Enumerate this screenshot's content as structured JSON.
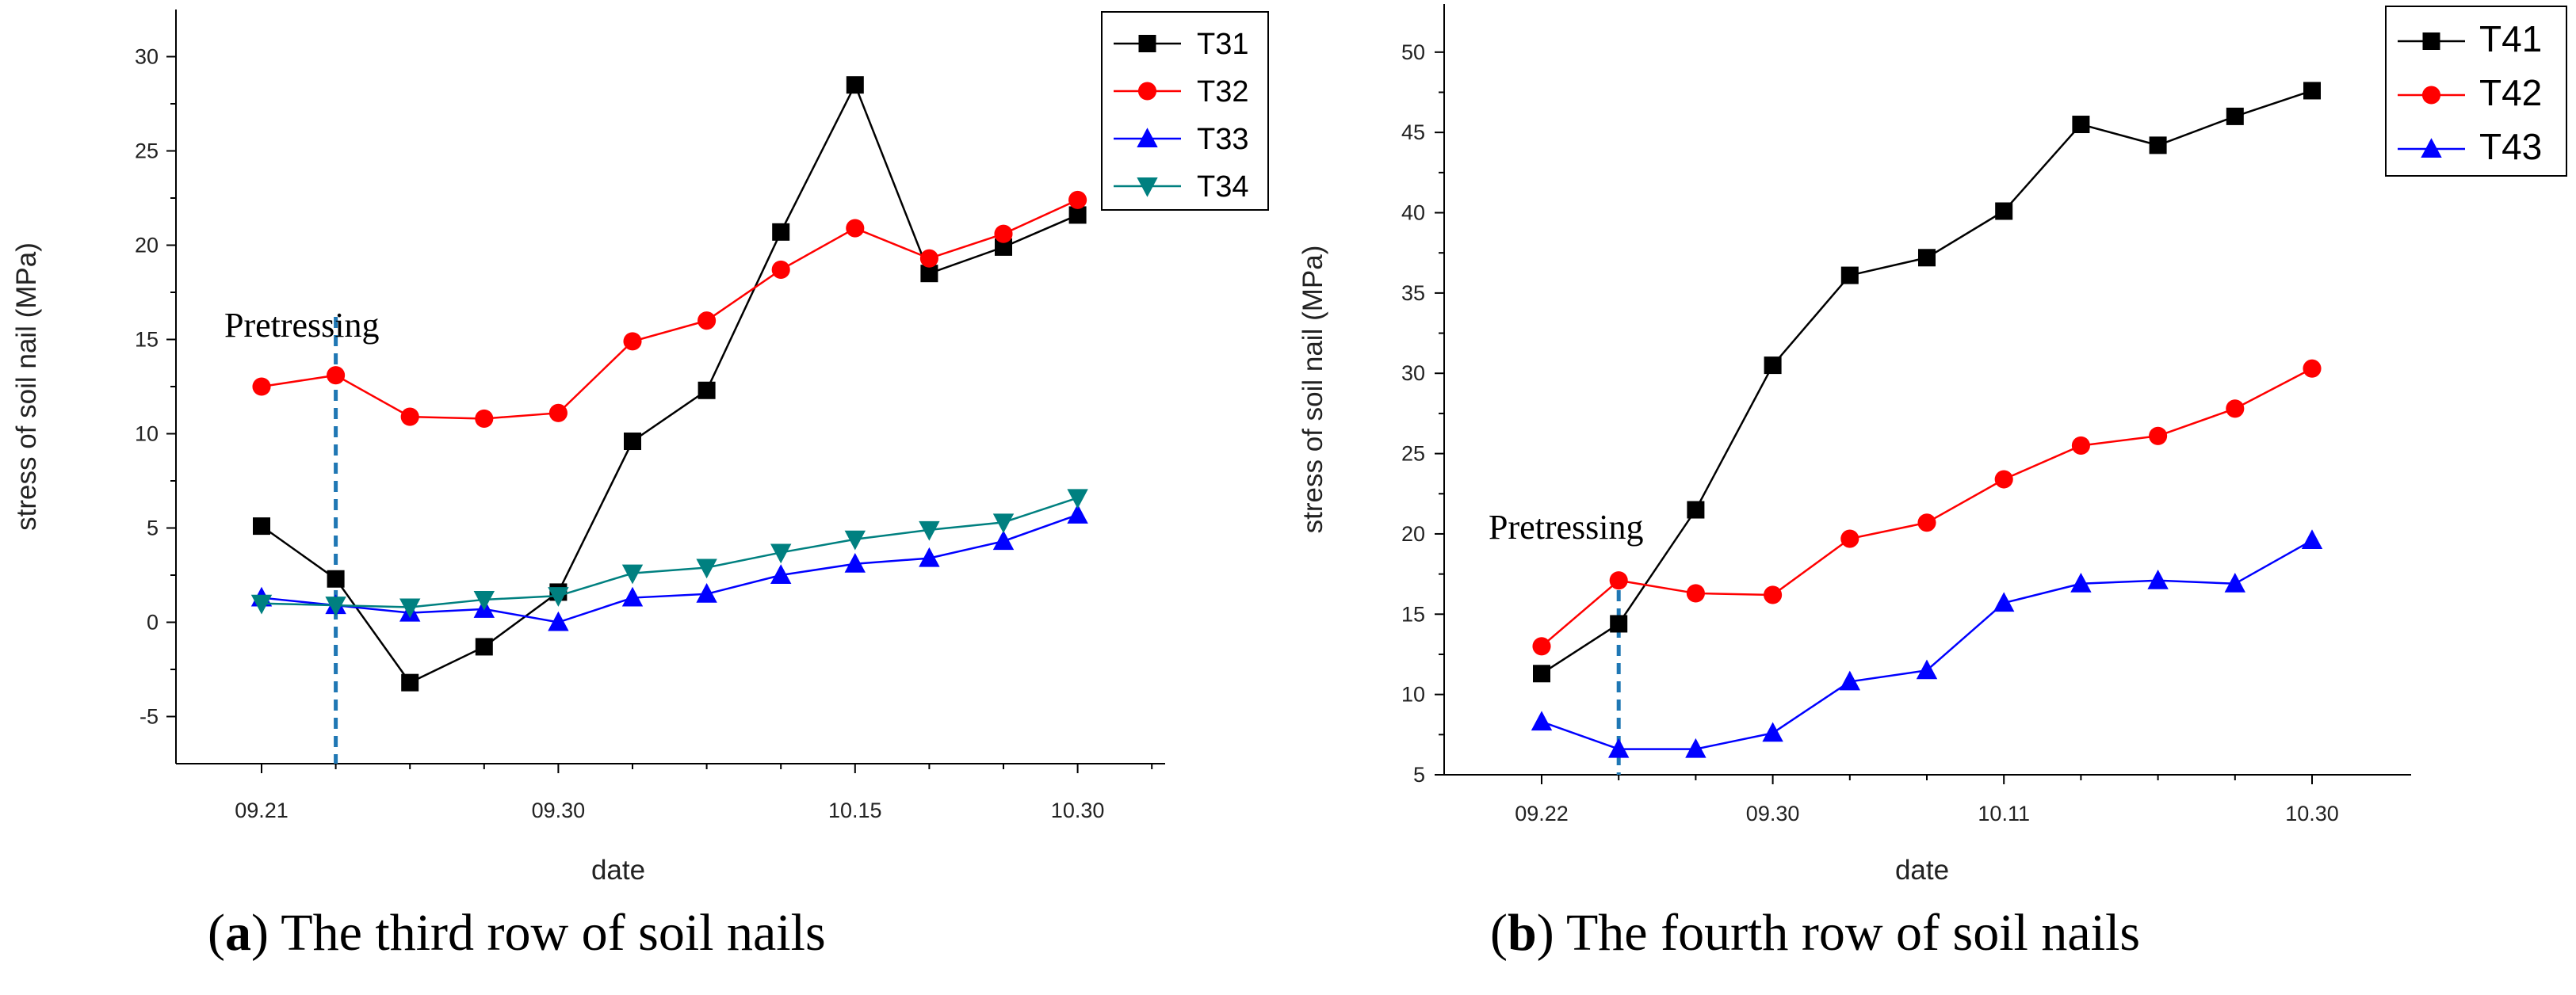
{
  "chart_data": [
    {
      "type": "line",
      "panel": "a",
      "title": "",
      "xlabel": "date",
      "ylabel": "stress of soil nail (MPa)",
      "xlim": [
        0,
        12
      ],
      "ylim": [
        -7.5,
        32.5
      ],
      "yticks": [
        -5,
        0,
        5,
        10,
        15,
        20,
        25,
        30
      ],
      "xticks": [
        {
          "x": 0,
          "label": "09.21"
        },
        {
          "x": 4,
          "label": "09.30"
        },
        {
          "x": 8,
          "label": "10.15"
        },
        {
          "x": 11,
          "label": "10.30"
        }
      ],
      "x": [
        0,
        1,
        2,
        3,
        4,
        5,
        6,
        7,
        8,
        9,
        10,
        11
      ],
      "series": [
        {
          "name": "T31",
          "color": "#000000",
          "marker": "square",
          "values": [
            5.1,
            2.3,
            -3.2,
            -1.3,
            1.6,
            9.6,
            12.3,
            20.7,
            28.5,
            18.5,
            19.9,
            21.6
          ]
        },
        {
          "name": "T32",
          "color": "#ff0000",
          "marker": "circle",
          "values": [
            12.5,
            13.1,
            10.9,
            10.8,
            11.1,
            14.9,
            16.0,
            18.7,
            20.9,
            19.3,
            20.6,
            22.4
          ]
        },
        {
          "name": "T33",
          "color": "#0000ff",
          "marker": "triangle-up",
          "values": [
            1.3,
            0.9,
            0.5,
            0.7,
            0.0,
            1.3,
            1.5,
            2.5,
            3.1,
            3.4,
            4.3,
            5.7
          ]
        },
        {
          "name": "T34",
          "color": "#008080",
          "marker": "triangle-down",
          "values": [
            1.0,
            0.9,
            0.8,
            1.2,
            1.4,
            2.6,
            2.9,
            3.7,
            4.4,
            4.9,
            5.3,
            6.6
          ]
        }
      ],
      "annotation": {
        "text": "Pretressing",
        "x": 1,
        "color": "#1f77b4"
      },
      "legend": "top-right",
      "caption": {
        "label": "a",
        "text": " The third row of soil nails"
      }
    },
    {
      "type": "line",
      "panel": "b",
      "title": "",
      "xlabel": "date",
      "ylabel": "stress of soil nail (MPa)",
      "xlim": [
        -0.5,
        10.5
      ],
      "ylim": [
        5,
        53
      ],
      "yticks": [
        5,
        10,
        15,
        20,
        25,
        30,
        35,
        40,
        45,
        50
      ],
      "xticks": [
        {
          "x": 0,
          "label": "09.22"
        },
        {
          "x": 3,
          "label": "09.30"
        },
        {
          "x": 6,
          "label": "10.11"
        },
        {
          "x": 10,
          "label": "10.30"
        }
      ],
      "x": [
        0,
        1,
        2,
        3,
        4,
        5,
        6,
        7,
        8,
        9,
        10
      ],
      "series": [
        {
          "name": "T41",
          "color": "#000000",
          "marker": "square",
          "values": [
            11.3,
            14.4,
            21.5,
            30.5,
            36.1,
            37.2,
            40.1,
            45.5,
            44.2,
            46.0,
            47.6
          ]
        },
        {
          "name": "T42",
          "color": "#ff0000",
          "marker": "circle",
          "values": [
            13.0,
            17.1,
            16.3,
            16.2,
            19.7,
            20.7,
            23.4,
            25.5,
            26.1,
            27.8,
            30.3
          ]
        },
        {
          "name": "T43",
          "color": "#0000ff",
          "marker": "triangle-up",
          "values": [
            8.3,
            6.6,
            6.6,
            7.6,
            10.8,
            11.5,
            15.7,
            16.9,
            17.1,
            16.9,
            19.6
          ]
        }
      ],
      "annotation": {
        "text": "Pretressing",
        "x": 1,
        "color": "#1f77b4"
      },
      "legend": "top-right",
      "caption": {
        "label": "b",
        "text": " The fourth row of soil nails"
      }
    }
  ]
}
